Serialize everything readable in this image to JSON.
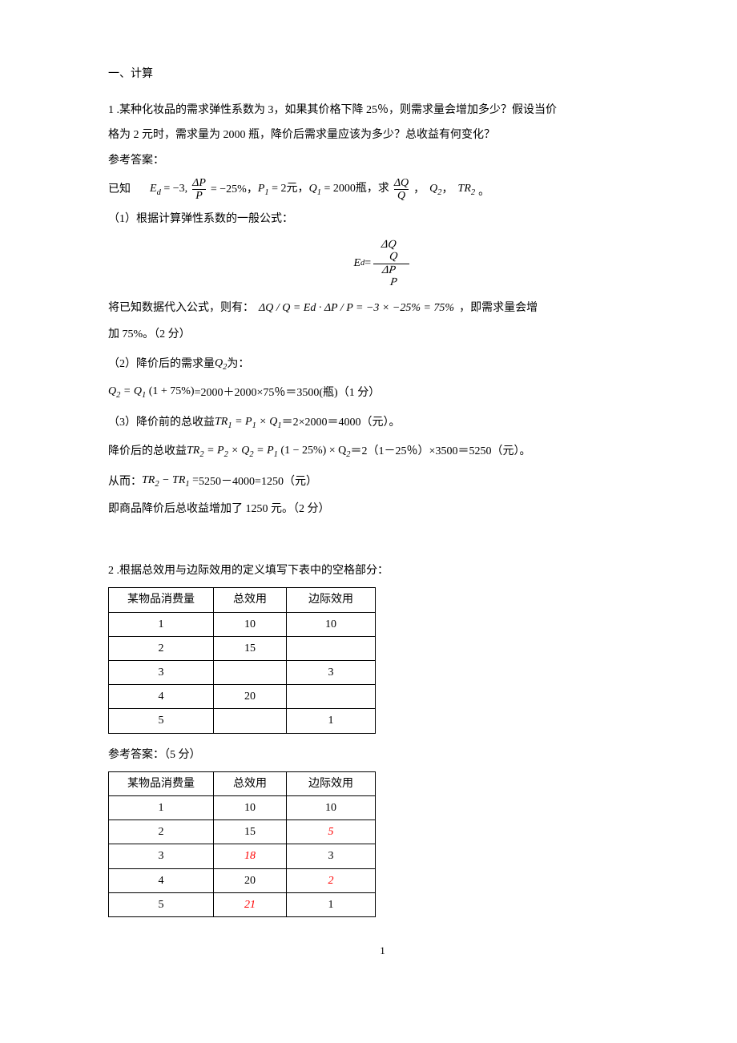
{
  "section_title": "一、计算",
  "q1": {
    "prompt_l1": "1 .某种化妆品的需求弹性系数为 3，如果其价格下降 25％，则需求量会增加多少？假设当价",
    "prompt_l2": "格为 2 元时，需求量为 2000 瓶，降价后需求量应该为多少？总收益有何变化？",
    "answer_label": "参考答案：",
    "known_prefix": "已知",
    "known_Ed": "E",
    "known_Ed_sub": "d",
    "known_Ed_eq": " = −3,",
    "known_dp_num": "ΔP",
    "known_dp_den": "P",
    "known_dp_eq": "= −25%，",
    "known_P1": "P",
    "known_P1_sub": "1",
    "known_P1_eq": " = 2元，",
    "known_Q1": "Q",
    "known_Q1_sub": "1",
    "known_Q1_eq": " = 2000瓶，求",
    "known_dq_num": "ΔQ",
    "known_dq_den": "Q",
    "known_tail_comma": "，",
    "known_Q2": "Q",
    "known_Q2_sub": "2",
    "known_tail_comma2": "，",
    "known_TR2": "TR",
    "known_TR2_sub": "2",
    "known_period": "。",
    "step1_prefix": "（1）根据计算弹性系数的一般公式：",
    "step1_Ed_lhs_E": "E",
    "step1_Ed_lhs_sub": "d",
    "step1_Ed_eq": " = ",
    "step1_num_top": "ΔQ",
    "step1_num_bot": "Q",
    "step1_den_top": "ΔP",
    "step1_den_bot": "P",
    "sub_line_prefix": "将已知数据代入公式，则有：",
    "sub_line_math": "ΔQ / Q = Ed · ΔP / P = −3 × −25% = 75%",
    "sub_line_suffix": "，即需求量会增",
    "sub_line_l2": "加 75%。（2 分）",
    "step2_prefix": "（2）降价后的需求量",
    "step2_Q2": "Q",
    "step2_Q2_sub": "2",
    "step2_suffix": "  为：",
    "step2_eq_lhs": "Q",
    "step2_eq_lhs_sub": "2",
    "step2_eq_mid": " = Q",
    "step2_eq_mid_sub": "1",
    "step2_eq_rhs": "(1 + 75%)",
    "step2_eq_tail": "=2000＋2000×75％＝3500(瓶)（1 分）",
    "step3_prefix": "（3）降价前的总收益",
    "step3_TR1": "TR",
    "step3_TR1_sub": "1",
    "step3_TR1_eq": " = P",
    "step3_P1_sub": "1",
    "step3_times": " × Q",
    "step3_Q1_sub": "1",
    "step3_tail": " ＝2×2000＝4000（元）。",
    "step3b_prefix": "降价后的总收益",
    "step3b_TR2": "TR",
    "step3b_TR2_sub": "2",
    "step3b_eq1": " = P",
    "step3b_P2_sub": "2",
    "step3b_eq2": " × Q",
    "step3b_Q2_sub": "2",
    "step3b_eq3": " = P",
    "step3b_P1_sub": "1",
    "step3b_eq4": "(1 − 25%) × Q",
    "step3b_Q2b_sub": "2",
    "step3b_tail": " ＝2（1－25％）×3500＝5250（元）。",
    "step4_prefix": "从而：",
    "step4_math": "TR",
    "step4_sub2": "2",
    "step4_minus": " − TR",
    "step4_sub1": "1",
    "step4_eq": " = ",
    "step4_tail": " 5250－4000=1250（元）",
    "step4_conclusion": "即商品降价后总收益增加了 1250 元。（2 分）"
  },
  "q2": {
    "prompt": "2 .根据总效用与边际效用的定义填写下表中的空格部分：",
    "headers": {
      "qty": "某物品消费量",
      "tu": "总效用",
      "mu": "边际效用"
    },
    "table1": [
      {
        "qty": "1",
        "tu": "10",
        "mu": "10"
      },
      {
        "qty": "2",
        "tu": "15",
        "mu": ""
      },
      {
        "qty": "3",
        "tu": "",
        "mu": "3"
      },
      {
        "qty": "4",
        "tu": "20",
        "mu": ""
      },
      {
        "qty": "5",
        "tu": "",
        "mu": "1"
      }
    ],
    "answer_label": "参考答案：（5 分）",
    "table2": [
      {
        "qty": "1",
        "tu": "10",
        "mu": "10",
        "tu_ans": false,
        "mu_ans": false
      },
      {
        "qty": "2",
        "tu": "15",
        "mu": "5",
        "tu_ans": false,
        "mu_ans": true
      },
      {
        "qty": "3",
        "tu": "18",
        "mu": "3",
        "tu_ans": true,
        "mu_ans": false
      },
      {
        "qty": "4",
        "tu": "20",
        "mu": "2",
        "tu_ans": false,
        "mu_ans": true
      },
      {
        "qty": "5",
        "tu": "21",
        "mu": "1",
        "tu_ans": true,
        "mu_ans": false
      }
    ]
  },
  "page_number": "1",
  "colors": {
    "text": "#000000",
    "answer": "#ff0000",
    "background": "#ffffff",
    "border": "#000000"
  }
}
